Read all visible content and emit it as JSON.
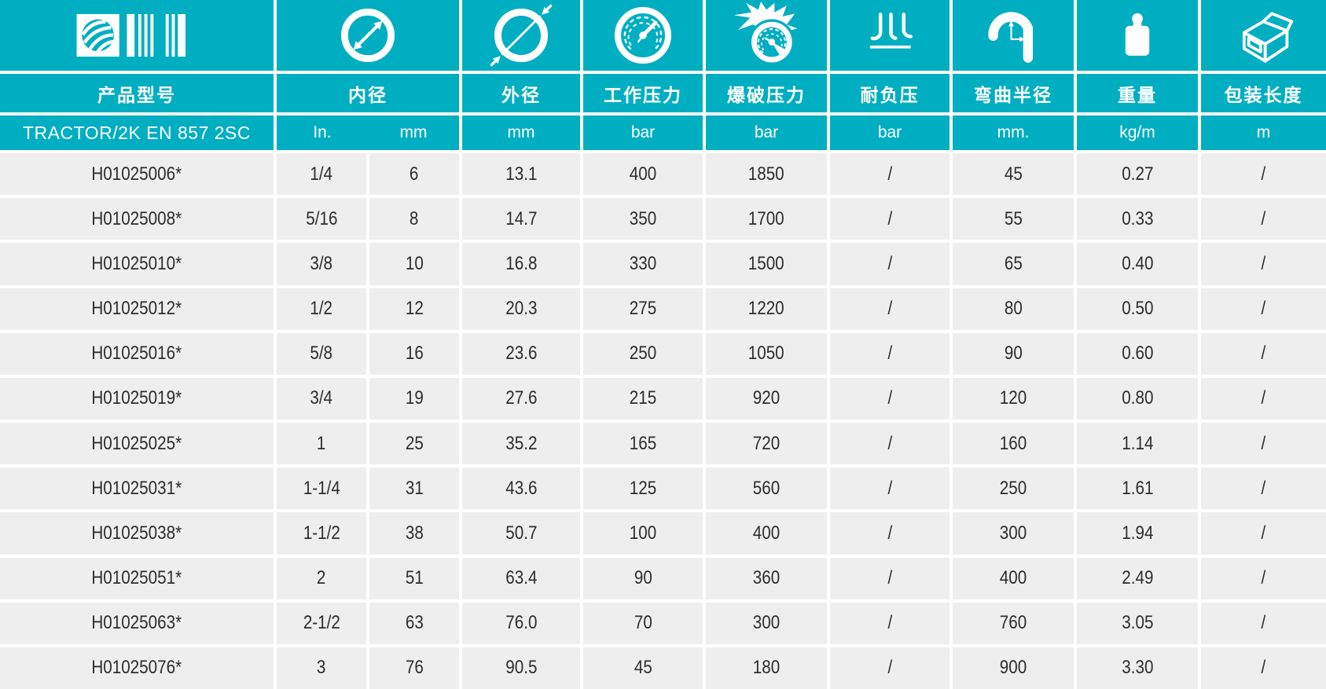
{
  "table": {
    "product_series": "TRACTOR/2K EN 857 2SC",
    "columns": [
      {
        "id": "model",
        "label": "产品型号",
        "icon": "brand-logo"
      },
      {
        "id": "inner_diameter",
        "label": "内径",
        "units": [
          "In.",
          "mm"
        ],
        "icon": "inner-diameter"
      },
      {
        "id": "outer_diameter",
        "label": "外径",
        "unit": "mm",
        "icon": "outer-diameter"
      },
      {
        "id": "working_pressure",
        "label": "工作压力",
        "unit": "bar",
        "icon": "pressure-gauge"
      },
      {
        "id": "burst_pressure",
        "label": "爆破压力",
        "unit": "bar",
        "icon": "burst-gauge"
      },
      {
        "id": "vacuum",
        "label": "耐负压",
        "unit": "bar",
        "icon": "vacuum"
      },
      {
        "id": "bend_radius",
        "label": "弯曲半径",
        "unit": "mm.",
        "icon": "bend-radius"
      },
      {
        "id": "weight",
        "label": "重量",
        "unit": "kg/m",
        "icon": "weight"
      },
      {
        "id": "pack_length",
        "label": "包装长度",
        "unit": "m",
        "icon": "package-box"
      }
    ],
    "rows": [
      [
        "H01025006*",
        "1/4",
        "6",
        "13.1",
        "400",
        "1850",
        "/",
        "45",
        "0.27",
        "/"
      ],
      [
        "H01025008*",
        "5/16",
        "8",
        "14.7",
        "350",
        "1700",
        "/",
        "55",
        "0.33",
        "/"
      ],
      [
        "H01025010*",
        "3/8",
        "10",
        "16.8",
        "330",
        "1500",
        "/",
        "65",
        "0.40",
        "/"
      ],
      [
        "H01025012*",
        "1/2",
        "12",
        "20.3",
        "275",
        "1220",
        "/",
        "80",
        "0.50",
        "/"
      ],
      [
        "H01025016*",
        "5/8",
        "16",
        "23.6",
        "250",
        "1050",
        "/",
        "90",
        "0.60",
        "/"
      ],
      [
        "H01025019*",
        "3/4",
        "19",
        "27.6",
        "215",
        "920",
        "/",
        "120",
        "0.80",
        "/"
      ],
      [
        "H01025025*",
        "1",
        "25",
        "35.2",
        "165",
        "720",
        "/",
        "160",
        "1.14",
        "/"
      ],
      [
        "H01025031*",
        "1-1/4",
        "31",
        "43.6",
        "125",
        "560",
        "/",
        "250",
        "1.61",
        "/"
      ],
      [
        "H01025038*",
        "1-1/2",
        "38",
        "50.7",
        "100",
        "400",
        "/",
        "300",
        "1.94",
        "/"
      ],
      [
        "H01025051*",
        "2",
        "51",
        "63.4",
        "90",
        "360",
        "/",
        "400",
        "2.49",
        "/"
      ],
      [
        "H01025063*",
        "2-1/2",
        "63",
        "76.0",
        "70",
        "300",
        "/",
        "760",
        "3.05",
        "/"
      ],
      [
        "H01025076*",
        "3",
        "76",
        "90.5",
        "45",
        "180",
        "/",
        "900",
        "3.30",
        "/"
      ]
    ],
    "colors": {
      "header_teal": "#00aec2",
      "row_background": "#eeeeee",
      "cell_text": "#2d2d2d",
      "header_text": "#ffffff"
    }
  }
}
